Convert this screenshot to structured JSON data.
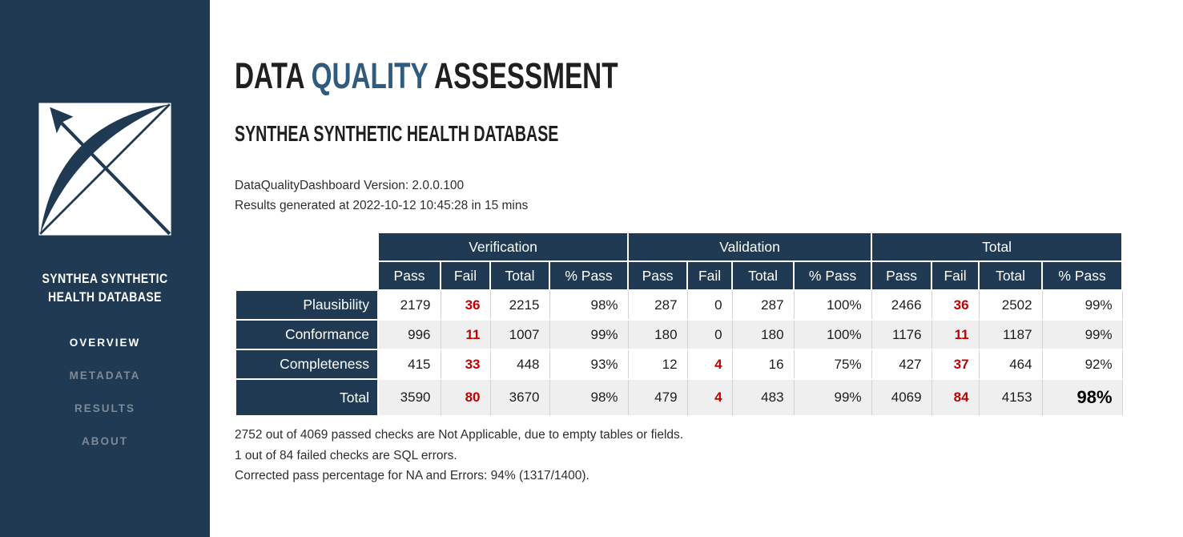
{
  "colors": {
    "navy": "#1f3a52",
    "highlight_blue": "#2d5c7f",
    "fail_red": "#c00000",
    "row_alt_gray": "#efefef"
  },
  "sidebar": {
    "logo_icon": "bow-and-arrow-logo",
    "database_name": "SYNTHEA SYNTHETIC HEALTH DATABASE",
    "nav": [
      {
        "label": "OVERVIEW",
        "active": true
      },
      {
        "label": "METADATA",
        "active": false
      },
      {
        "label": "RESULTS",
        "active": false
      },
      {
        "label": "ABOUT",
        "active": false
      }
    ]
  },
  "header": {
    "title_prefix": "DATA ",
    "title_highlight": "QUALITY",
    "title_suffix": " ASSESSMENT",
    "subtitle": "SYNTHEA SYNTHETIC HEALTH DATABASE",
    "version_line": "DataQualityDashboard Version: 2.0.0.100",
    "generated_line": "Results generated at 2022-10-12 10:45:28 in 15 mins"
  },
  "table": {
    "groups": [
      "Verification",
      "Validation",
      "Total"
    ],
    "subheaders": [
      "Pass",
      "Fail",
      "Total",
      "% Pass"
    ],
    "rows": [
      {
        "label": "Plausibility",
        "values": [
          "2179",
          "36",
          "2215",
          "98%",
          "287",
          "0",
          "287",
          "100%",
          "2466",
          "36",
          "2502",
          "99%"
        ]
      },
      {
        "label": "Conformance",
        "values": [
          "996",
          "11",
          "1007",
          "99%",
          "180",
          "0",
          "180",
          "100%",
          "1176",
          "11",
          "1187",
          "99%"
        ]
      },
      {
        "label": "Completeness",
        "values": [
          "415",
          "33",
          "448",
          "93%",
          "12",
          "4",
          "16",
          "75%",
          "427",
          "37",
          "464",
          "92%"
        ]
      },
      {
        "label": "Total",
        "values": [
          "3590",
          "80",
          "3670",
          "98%",
          "479",
          "4",
          "483",
          "99%",
          "4069",
          "84",
          "4153",
          "98%"
        ]
      }
    ]
  },
  "notes": [
    "2752 out of 4069 passed checks are Not Applicable, due to empty tables or fields.",
    "1 out of 84 failed checks are SQL errors.",
    "Corrected pass percentage for NA and Errors: 94% (1317/1400)."
  ]
}
